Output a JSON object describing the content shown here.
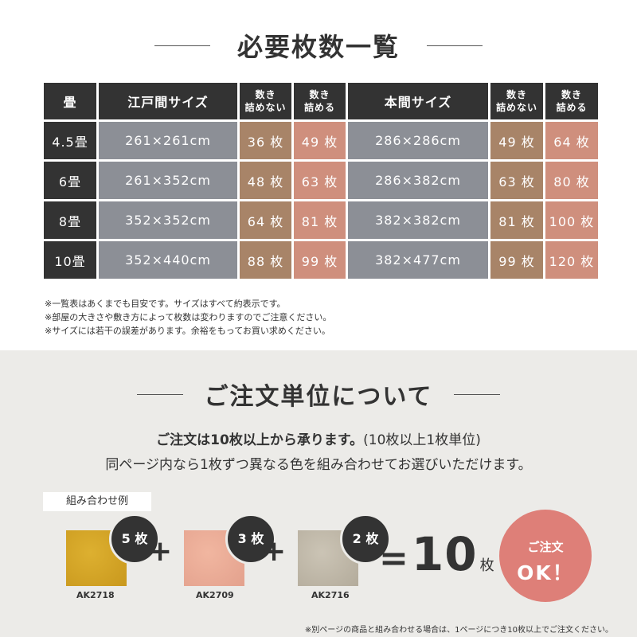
{
  "top": {
    "title": "必要枚数一覧",
    "table": {
      "headers": {
        "tatami": "畳",
        "edo_size": "江戸間サイズ",
        "no_lay": "数き\n詰めない",
        "lay": "数き\n詰める",
        "hon_size": "本間サイズ",
        "no_lay2": "数き\n詰めない",
        "lay2": "数き\n詰める"
      },
      "rows": [
        {
          "tatami": "4.5畳",
          "edo": "261×261cm",
          "edo_no": "36 枚",
          "edo_yes": "49 枚",
          "hon": "286×286cm",
          "hon_no": "49 枚",
          "hon_yes": "64 枚"
        },
        {
          "tatami": "6畳",
          "edo": "261×352cm",
          "edo_no": "48 枚",
          "edo_yes": "63 枚",
          "hon": "286×382cm",
          "hon_no": "63 枚",
          "hon_yes": "80 枚"
        },
        {
          "tatami": "8畳",
          "edo": "352×352cm",
          "edo_no": "64 枚",
          "edo_yes": "81 枚",
          "hon": "382×382cm",
          "hon_no": "81 枚",
          "hon_yes": "100 枚"
        },
        {
          "tatami": "10畳",
          "edo": "352×440cm",
          "edo_no": "88 枚",
          "edo_yes": "99 枚",
          "hon": "382×477cm",
          "hon_no": "99 枚",
          "hon_yes": "120 枚"
        }
      ]
    },
    "notes": [
      "※一覧表はあくまでも目安です。サイズはすべて約表示です。",
      "※部屋の大きさや敷き方によって枚数は変わりますのでご注意ください。",
      "※サイズには若干の誤差があります。余裕をもってお買い求めください。"
    ]
  },
  "bottom": {
    "title": "ご注文単位について",
    "line1_bold": "ご注文は10枚以上から承ります。",
    "line1_rest": "(10枚以上1枚単位)",
    "line2": "同ページ内なら1枚ずつ異なる色を組み合わせてお選びいただけます。",
    "example_label": "組み合わせ例",
    "items": [
      {
        "count": "5 枚",
        "code": "AK2718"
      },
      {
        "count": "3 枚",
        "code": "AK2709"
      },
      {
        "count": "2 枚",
        "code": "AK2716"
      }
    ],
    "plus": "+",
    "equals": "=",
    "total_num": "10",
    "total_unit": "枚",
    "ok_line1": "ご注文",
    "ok_line2": "OK！",
    "footnote": "※別ページの商品と組み合わせる場合は、1ページにつき10枚以上でご注文ください。"
  },
  "colors": {
    "header_dark": "#333333",
    "gray_cell": "#8c8f96",
    "brown_cell": "#a88468",
    "pink_cell": "#cf8f7d",
    "bottom_bg": "#ecebe8",
    "ok_circle": "#de7f78",
    "swatch_yellow": "#d3a327",
    "swatch_pink": "#eaab96",
    "swatch_beige": "#bfb8a8"
  }
}
